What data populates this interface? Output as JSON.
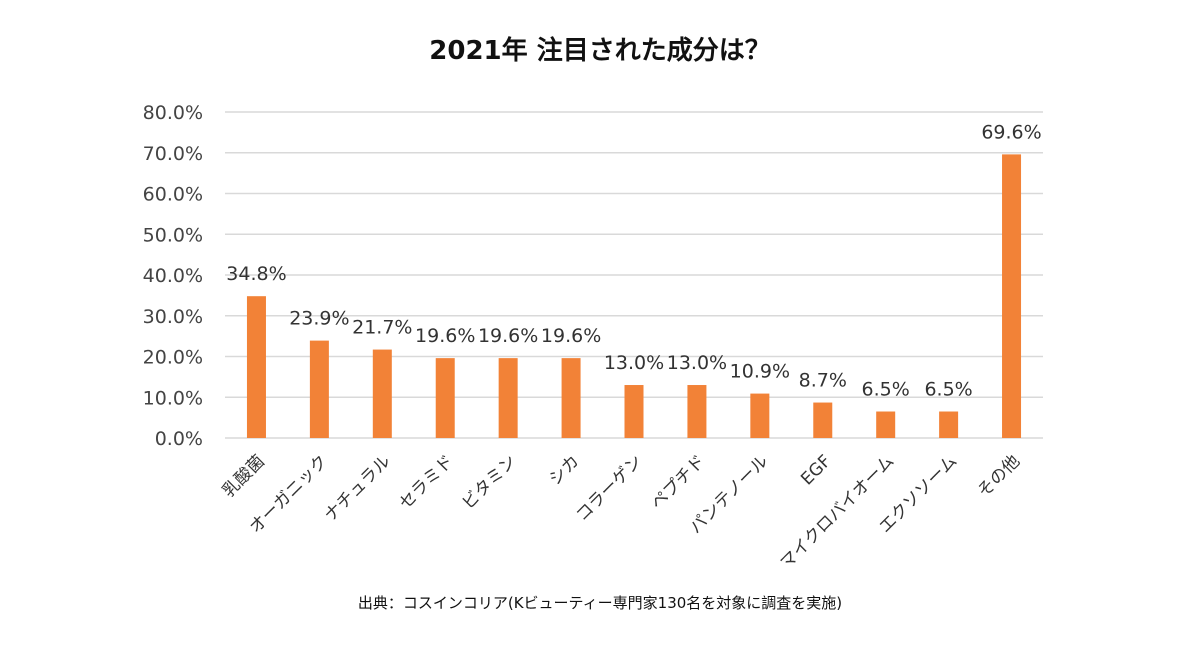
{
  "chart_data": {
    "type": "bar",
    "title": "2021年 注目された成分は？",
    "categories": [
      "乳酸菌",
      "オーガニック",
      "ナチュラル",
      "セラミド",
      "ビタミン",
      "シカ",
      "コラーゲン",
      "ペプチド",
      "パンテノール",
      "EGF",
      "マイクロバイオーム",
      "エクソソーム",
      "その他"
    ],
    "values": [
      34.8,
      23.9,
      21.7,
      19.6,
      19.6,
      19.6,
      13.0,
      13.0,
      10.9,
      8.7,
      6.5,
      6.5,
      69.6
    ],
    "value_labels": [
      "34.8%",
      "23.9%",
      "21.7%",
      "19.6%",
      "19.6%",
      "19.6%",
      "13.0%",
      "13.0%",
      "10.9%",
      "8.7%",
      "6.5%",
      "6.5%",
      "69.6%"
    ],
    "y_ticks": [
      "0.0%",
      "10.0%",
      "20.0%",
      "30.0%",
      "40.0%",
      "50.0%",
      "60.0%",
      "70.0%",
      "80.0%"
    ],
    "ylim": [
      0,
      80
    ],
    "xlabel": "",
    "ylabel": "",
    "grid": true,
    "legend": "none",
    "bar_color": "#f28237",
    "grid_color": "#d9d9d9"
  },
  "source": "出典：コスインコリア(Kビューティー専門家130名を対象に調査を実施)"
}
